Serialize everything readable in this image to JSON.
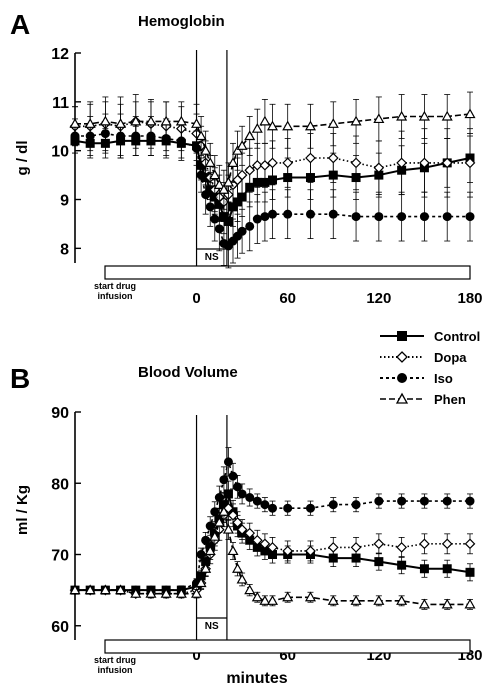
{
  "legend": {
    "entries": [
      {
        "name": "Control",
        "marker": "square-filled",
        "dash": "solid"
      },
      {
        "name": "Dopa",
        "marker": "diamond-open",
        "dash": "dotted"
      },
      {
        "name": "Iso",
        "marker": "circle-filled",
        "dash": "short-dash"
      },
      {
        "name": "Phen",
        "marker": "triangle-open",
        "dash": "long-dash"
      }
    ]
  },
  "chart_data": [
    {
      "panel_letter": "A",
      "type": "line",
      "title": "Hemoglobin",
      "ylabel": "g / dl",
      "xlabel": "",
      "xlim": [
        -80,
        180
      ],
      "ylim": [
        7.7,
        12
      ],
      "yticks": [
        8,
        9,
        10,
        11,
        12
      ],
      "xticks": [
        0,
        60,
        120,
        180
      ],
      "grid": false,
      "drug_bar_label": "start drug infusion",
      "ns_label": "NS",
      "ns_range": [
        0,
        20
      ],
      "series": [
        {
          "name": "Control",
          "x": [
            -80,
            -70,
            -60,
            -50,
            -40,
            -30,
            -20,
            -10,
            0,
            3,
            6,
            9,
            12,
            15,
            18,
            21,
            24,
            27,
            30,
            35,
            40,
            45,
            50,
            60,
            75,
            90,
            105,
            120,
            135,
            150,
            165,
            180
          ],
          "y": [
            10.2,
            10.15,
            10.15,
            10.2,
            10.2,
            10.2,
            10.2,
            10.15,
            10.1,
            9.7,
            9.45,
            9.2,
            9.05,
            8.9,
            8.65,
            8.55,
            8.85,
            8.95,
            9.05,
            9.25,
            9.35,
            9.35,
            9.4,
            9.45,
            9.45,
            9.5,
            9.45,
            9.5,
            9.6,
            9.65,
            9.75,
            9.85
          ],
          "err": [
            0.25,
            0.3,
            0.3,
            0.35,
            0.3,
            0.3,
            0.3,
            0.3,
            0.3,
            0.3,
            0.3,
            0.35,
            0.35,
            0.35,
            0.35,
            0.4,
            0.4,
            0.4,
            0.4,
            0.4,
            0.4,
            0.4,
            0.4,
            0.4,
            0.45,
            0.45,
            0.45,
            0.45,
            0.5,
            0.5,
            0.5,
            0.5
          ]
        },
        {
          "name": "Dopa",
          "x": [
            -80,
            -70,
            -60,
            -50,
            -40,
            -30,
            -20,
            -10,
            0,
            3,
            6,
            9,
            12,
            15,
            18,
            21,
            24,
            27,
            30,
            35,
            40,
            45,
            50,
            60,
            75,
            90,
            105,
            120,
            135,
            150,
            165,
            180
          ],
          "y": [
            10.5,
            10.5,
            10.55,
            10.5,
            10.6,
            10.55,
            10.5,
            10.45,
            10.35,
            10.1,
            9.75,
            9.45,
            9.2,
            9.05,
            8.95,
            9.1,
            9.3,
            9.4,
            9.5,
            9.6,
            9.7,
            9.7,
            9.75,
            9.75,
            9.85,
            9.85,
            9.75,
            9.65,
            9.75,
            9.75,
            9.75,
            9.75
          ],
          "err": [
            0.4,
            0.5,
            0.55,
            0.6,
            0.55,
            0.5,
            0.5,
            0.45,
            0.4,
            0.4,
            0.45,
            0.45,
            0.45,
            0.45,
            0.4,
            0.4,
            0.45,
            0.45,
            0.45,
            0.45,
            0.45,
            0.45,
            0.45,
            0.5,
            0.5,
            0.5,
            0.55,
            0.55,
            0.65,
            0.7,
            0.7,
            0.7
          ]
        },
        {
          "name": "Iso",
          "x": [
            -80,
            -70,
            -60,
            -50,
            -40,
            -30,
            -20,
            -10,
            0,
            3,
            6,
            9,
            12,
            15,
            18,
            21,
            24,
            27,
            30,
            35,
            40,
            45,
            50,
            60,
            75,
            90,
            105,
            120,
            135,
            150,
            165,
            180
          ],
          "y": [
            10.3,
            10.3,
            10.35,
            10.3,
            10.3,
            10.3,
            10.25,
            10.2,
            10.05,
            9.5,
            9.1,
            8.85,
            8.6,
            8.4,
            8.1,
            8.05,
            8.15,
            8.25,
            8.35,
            8.45,
            8.6,
            8.65,
            8.7,
            8.7,
            8.7,
            8.7,
            8.65,
            8.65,
            8.65,
            8.65,
            8.65,
            8.65
          ],
          "err": [
            0.35,
            0.4,
            0.4,
            0.45,
            0.4,
            0.4,
            0.4,
            0.4,
            0.35,
            0.35,
            0.4,
            0.4,
            0.45,
            0.45,
            0.45,
            0.45,
            0.45,
            0.45,
            0.45,
            0.5,
            0.5,
            0.5,
            0.5,
            0.5,
            0.5,
            0.5,
            0.5,
            0.5,
            0.5,
            0.5,
            0.5,
            0.5
          ]
        },
        {
          "name": "Phen",
          "x": [
            -80,
            -70,
            -60,
            -50,
            -40,
            -30,
            -20,
            -10,
            0,
            3,
            6,
            9,
            12,
            15,
            18,
            21,
            24,
            27,
            30,
            35,
            40,
            45,
            50,
            60,
            75,
            90,
            105,
            120,
            135,
            150,
            165,
            180
          ],
          "y": [
            10.55,
            10.55,
            10.6,
            10.55,
            10.6,
            10.6,
            10.6,
            10.6,
            10.55,
            10.3,
            10.0,
            9.75,
            9.5,
            9.3,
            9.2,
            9.35,
            9.75,
            10.0,
            10.1,
            10.3,
            10.45,
            10.6,
            10.5,
            10.5,
            10.5,
            10.55,
            10.6,
            10.65,
            10.7,
            10.7,
            10.7,
            10.75
          ],
          "err": [
            0.35,
            0.4,
            0.4,
            0.4,
            0.4,
            0.4,
            0.4,
            0.4,
            0.4,
            0.4,
            0.4,
            0.4,
            0.4,
            0.4,
            0.4,
            0.4,
            0.4,
            0.4,
            0.4,
            0.4,
            0.4,
            0.45,
            0.45,
            0.45,
            0.45,
            0.45,
            0.45,
            0.45,
            0.45,
            0.45,
            0.45,
            0.45
          ]
        }
      ]
    },
    {
      "panel_letter": "B",
      "type": "line",
      "title": "Blood Volume",
      "ylabel": "ml / Kg",
      "xlabel": "minutes",
      "xlim": [
        -80,
        180
      ],
      "ylim": [
        58,
        90
      ],
      "yticks": [
        60,
        70,
        80,
        90
      ],
      "xticks": [
        0,
        60,
        120,
        180
      ],
      "grid": false,
      "drug_bar_label": "start drug infusion",
      "ns_label": "NS",
      "ns_range": [
        0,
        20
      ],
      "series": [
        {
          "name": "Control",
          "x": [
            -80,
            -70,
            -60,
            -50,
            -40,
            -30,
            -20,
            -10,
            0,
            3,
            6,
            9,
            12,
            15,
            18,
            21,
            24,
            27,
            30,
            35,
            40,
            45,
            50,
            60,
            75,
            90,
            105,
            120,
            135,
            150,
            165,
            180
          ],
          "y": [
            65,
            65,
            65,
            65,
            65,
            65,
            65,
            65,
            65.5,
            67,
            69,
            71,
            73,
            75,
            77,
            78.5,
            76,
            74,
            73,
            72,
            71,
            70.5,
            70,
            70,
            70,
            69.5,
            69.5,
            69,
            68.5,
            68,
            68,
            67.5
          ],
          "err": [
            0.3,
            0.3,
            0.4,
            0.4,
            0.4,
            0.5,
            0.5,
            0.6,
            0.6,
            0.8,
            1.0,
            1.2,
            1.4,
            1.5,
            1.6,
            1.8,
            1.6,
            1.5,
            1.4,
            1.3,
            1.2,
            1.2,
            1.2,
            1.2,
            1.2,
            1.2,
            1.2,
            1.2,
            1.2,
            1.2,
            1.2,
            1.2
          ]
        },
        {
          "name": "Dopa",
          "x": [
            -80,
            -70,
            -60,
            -50,
            -40,
            -30,
            -20,
            -10,
            0,
            3,
            6,
            9,
            12,
            15,
            18,
            21,
            24,
            27,
            30,
            35,
            40,
            45,
            50,
            60,
            75,
            90,
            105,
            120,
            135,
            150,
            165,
            180
          ],
          "y": [
            65,
            65,
            65,
            65,
            64.5,
            64.5,
            64.5,
            64.5,
            65,
            66,
            68,
            70,
            72,
            73.5,
            75.5,
            76.5,
            75.5,
            74.5,
            73.5,
            73,
            72,
            71.5,
            71,
            70.5,
            70.5,
            71,
            71,
            71.5,
            71,
            71.5,
            71.5,
            71.5
          ],
          "err": [
            0.4,
            0.4,
            0.5,
            0.5,
            0.5,
            0.6,
            0.6,
            0.6,
            0.7,
            0.9,
            1.1,
            1.3,
            1.4,
            1.5,
            1.6,
            1.7,
            1.6,
            1.5,
            1.4,
            1.4,
            1.4,
            1.4,
            1.4,
            1.4,
            1.4,
            1.4,
            1.4,
            1.4,
            1.4,
            1.4,
            1.4,
            1.4
          ]
        },
        {
          "name": "Iso",
          "x": [
            -80,
            -70,
            -60,
            -50,
            -40,
            -30,
            -20,
            -10,
            0,
            3,
            6,
            9,
            12,
            15,
            18,
            21,
            24,
            27,
            30,
            35,
            40,
            45,
            50,
            60,
            75,
            90,
            105,
            120,
            135,
            150,
            165,
            180
          ],
          "y": [
            65,
            65,
            65,
            65,
            65,
            65,
            65,
            65,
            66,
            70,
            72,
            74,
            76,
            78,
            80.5,
            83,
            81,
            79.5,
            78.5,
            78,
            77.5,
            77,
            76.5,
            76.5,
            76.5,
            77,
            77,
            77.5,
            77.5,
            77.5,
            77.5,
            77.5
          ],
          "err": [
            0.3,
            0.3,
            0.4,
            0.4,
            0.4,
            0.5,
            0.5,
            0.5,
            0.6,
            0.9,
            1.1,
            1.3,
            1.4,
            1.6,
            1.8,
            2.0,
            1.8,
            1.6,
            1.4,
            1.2,
            1.0,
            1.0,
            1.0,
            1.0,
            1.0,
            1.0,
            1.0,
            1.0,
            1.0,
            1.0,
            1.0,
            1.0
          ]
        },
        {
          "name": "Phen",
          "x": [
            -80,
            -70,
            -60,
            -50,
            -40,
            -30,
            -20,
            -10,
            0,
            3,
            6,
            9,
            12,
            15,
            18,
            21,
            24,
            27,
            30,
            35,
            40,
            45,
            50,
            60,
            75,
            90,
            105,
            120,
            135,
            150,
            165,
            180
          ],
          "y": [
            65,
            65,
            65,
            65,
            64.5,
            64.5,
            64.5,
            64.5,
            64.5,
            66,
            68,
            70.5,
            72.5,
            74.5,
            76,
            73.5,
            70.5,
            68,
            66.5,
            65,
            64,
            63.5,
            63.5,
            64,
            64,
            63.5,
            63.5,
            63.5,
            63.5,
            63,
            63,
            63
          ],
          "err": [
            0.3,
            0.3,
            0.4,
            0.4,
            0.4,
            0.5,
            0.5,
            0.5,
            0.6,
            0.8,
            1.0,
            1.2,
            1.3,
            1.4,
            1.5,
            1.4,
            1.2,
            1.0,
            0.9,
            0.8,
            0.7,
            0.7,
            0.7,
            0.7,
            0.7,
            0.7,
            0.7,
            0.7,
            0.7,
            0.7,
            0.7,
            0.7
          ]
        }
      ]
    }
  ]
}
